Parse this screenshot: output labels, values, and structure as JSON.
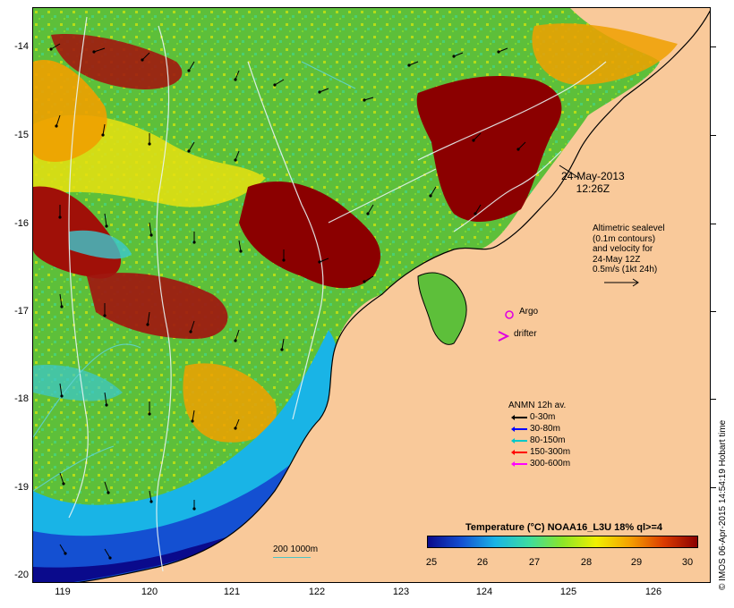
{
  "map": {
    "y_labels": [
      "-14",
      "-15",
      "-16",
      "-17",
      "-18",
      "-19",
      "-20"
    ],
    "x_labels": [
      "119",
      "120",
      "121",
      "122",
      "123",
      "124",
      "125",
      "126"
    ],
    "colors": {
      "land": "#f9c99a",
      "cold": "#00008b",
      "warm": "#8b0000",
      "contour": "#e8f4f4",
      "contour_cyan": "#5fd3d3"
    }
  },
  "annotations": {
    "date_line1": "24-May-2013",
    "date_line2": "12:26Z",
    "altimetry": [
      "Altimetric sealevel",
      "(0.1m contours)",
      "and velocity for",
      "24-May 12Z",
      "0.5m/s (1kt 24h)"
    ],
    "argo_label": "Argo",
    "drifter_label": "drifter"
  },
  "anmn_legend": {
    "title": "ANMN 12h av.",
    "items": [
      {
        "label": "0-30m",
        "color": "#000000"
      },
      {
        "label": "30-80m",
        "color": "#0000ff"
      },
      {
        "label": "80-150m",
        "color": "#00c8c8"
      },
      {
        "label": "150-300m",
        "color": "#ff0000"
      },
      {
        "label": "300-600m",
        "color": "#ff00ff"
      }
    ]
  },
  "colorbar": {
    "title": "Temperature (°C) NOAA16_L3U 18% ql>=4",
    "ticks": [
      "25",
      "26",
      "27",
      "28",
      "29",
      "30"
    ],
    "stops": [
      "#0a0a8c",
      "#1450d2",
      "#19b4e6",
      "#3cdca0",
      "#8ce628",
      "#f0f000",
      "#f5a000",
      "#dc3c00",
      "#8b0000"
    ]
  },
  "scale": {
    "label": "200  1000m"
  },
  "credit": "© IMOS 06-Apr-2015 14:54:19 Hobart time"
}
